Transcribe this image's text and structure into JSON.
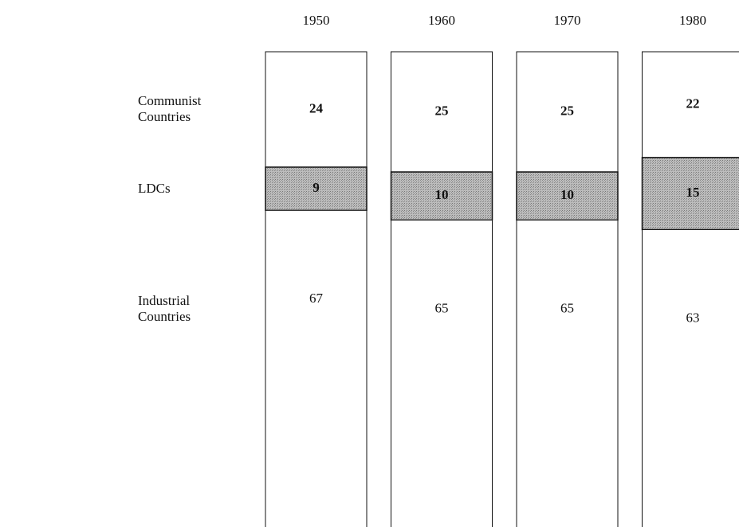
{
  "chart_data": {
    "type": "stacked_bar",
    "categories": [
      "1950",
      "1960",
      "1970",
      "1980"
    ],
    "series": [
      {
        "name": "Communist Countries",
        "color": "#ffffff",
        "values": [
          24,
          25,
          25,
          22
        ]
      },
      {
        "name": "LDCs",
        "color": "#a9a9a9",
        "values": [
          9,
          10,
          10,
          15
        ]
      },
      {
        "name": "Industrial Countries",
        "color": "#ffffff",
        "values": [
          67,
          65,
          65,
          63
        ]
      }
    ]
  }
}
